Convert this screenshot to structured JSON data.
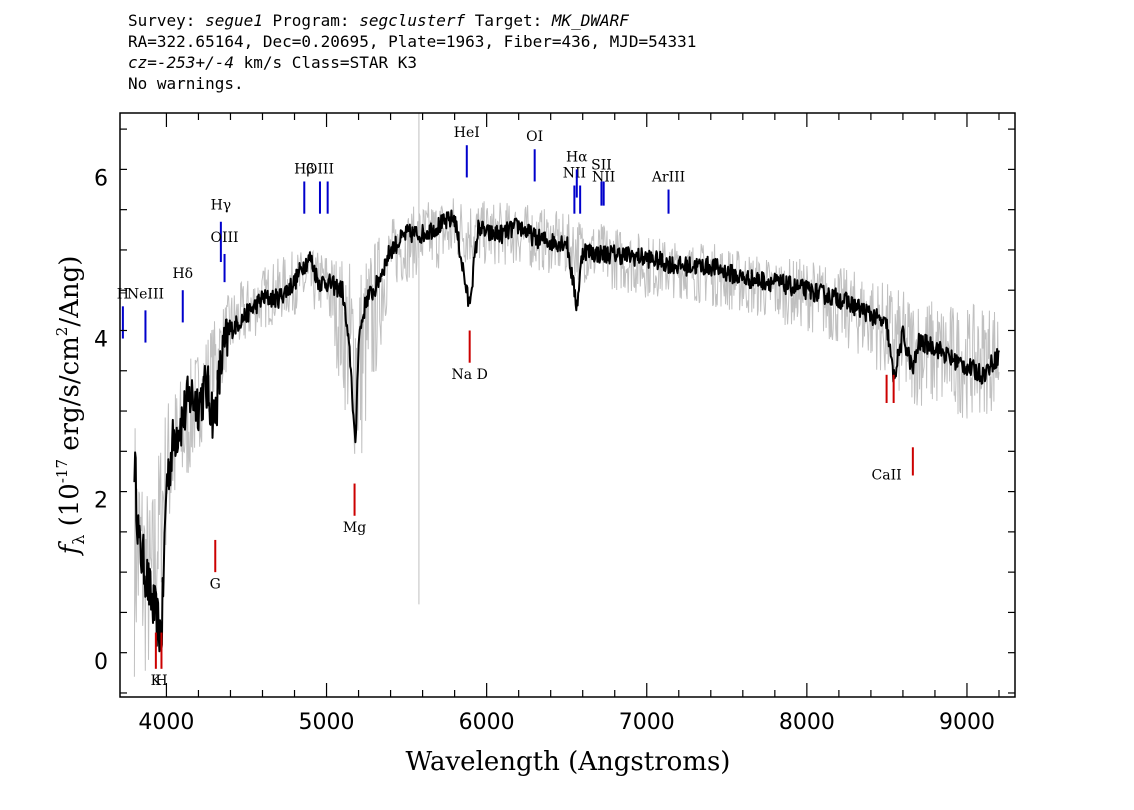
{
  "header": {
    "survey_label": "Survey: ",
    "survey": "segue1",
    "program_label": " Program: ",
    "program": "segclusterf",
    "target_label": " Target: ",
    "target": "MK_DWARF",
    "line2": "RA=322.65164, Dec=0.20695, Plate=1963, Fiber=436, MJD=54331",
    "cz_label": "cz=",
    "cz_value": "-253+/-4",
    "cz_rest": " km/s Class=STAR K3",
    "warnings": "No warnings."
  },
  "chart_data": {
    "type": "line",
    "xlabel": "Wavelength (Angstroms)",
    "ylabel": "f_λ (10^-17 erg/s/cm^2/Ang)",
    "xlim": [
      3710,
      9300
    ],
    "ylim": [
      -0.45,
      6.8
    ],
    "x_ticks": [
      4000,
      5000,
      6000,
      7000,
      8000,
      9000
    ],
    "y_ticks": [
      0,
      2,
      4,
      6
    ],
    "grid": false,
    "colors": {
      "flux": "#000000",
      "noise": "#c0c0c0",
      "emission_lines": "#0000cc",
      "absorption_lines": "#cc0000"
    },
    "series": [
      {
        "role": "smoothed flux (black)",
        "x": [
          3800,
          3830,
          3860,
          3900,
          3940,
          3970,
          4000,
          4050,
          4100,
          4150,
          4200,
          4250,
          4300,
          4350,
          4400,
          4500,
          4600,
          4700,
          4800,
          4850,
          4900,
          4950,
          5000,
          5100,
          5150,
          5180,
          5200,
          5250,
          5300,
          5400,
          5500,
          5600,
          5700,
          5800,
          5890,
          5950,
          6000,
          6100,
          6200,
          6300,
          6400,
          6500,
          6563,
          6600,
          6700,
          6800,
          7000,
          7200,
          7400,
          7600,
          7800,
          8000,
          8200,
          8400,
          8500,
          8542,
          8600,
          8662,
          8700,
          8800,
          8900,
          9000,
          9100,
          9200
        ],
        "y": [
          2.5,
          1.4,
          1.2,
          0.8,
          0.5,
          0.3,
          2.2,
          2.8,
          3.0,
          3.3,
          3.2,
          3.4,
          3.0,
          3.8,
          4.1,
          4.3,
          4.5,
          4.5,
          4.7,
          4.9,
          5.0,
          4.7,
          4.7,
          4.6,
          3.7,
          2.6,
          4.0,
          4.5,
          4.6,
          5.1,
          5.3,
          5.3,
          5.4,
          5.5,
          4.4,
          5.4,
          5.3,
          5.3,
          5.4,
          5.25,
          5.2,
          5.2,
          4.4,
          5.1,
          5.05,
          5.05,
          5.0,
          4.9,
          4.9,
          4.75,
          4.7,
          4.6,
          4.5,
          4.3,
          4.15,
          3.5,
          4.05,
          3.6,
          3.95,
          3.9,
          3.75,
          3.65,
          3.55,
          3.8
        ]
      },
      {
        "role": "noise envelope upper (gray)",
        "x": [
          3800,
          3900,
          4000,
          4200,
          4400,
          4600,
          4800,
          5000,
          5200,
          5400,
          5600,
          5800,
          6000,
          6200,
          6400,
          6600,
          6800,
          7000,
          7200,
          7400,
          7600,
          7800,
          8000,
          8200,
          8400,
          8600,
          8800,
          9000,
          9200
        ],
        "y": [
          3.2,
          2.0,
          3.3,
          3.9,
          4.6,
          4.9,
          5.1,
          5.1,
          5.0,
          5.5,
          5.7,
          5.8,
          5.7,
          5.7,
          5.6,
          5.5,
          5.4,
          5.3,
          5.2,
          5.2,
          5.1,
          5.0,
          5.0,
          4.9,
          4.8,
          4.6,
          4.5,
          4.4,
          4.5
        ]
      },
      {
        "role": "noise envelope lower (gray)",
        "x": [
          3800,
          3900,
          4000,
          4200,
          4400,
          4600,
          4800,
          5000,
          5200,
          5400,
          5600,
          5800,
          6000,
          6200,
          6400,
          6600,
          6800,
          7000,
          7200,
          7400,
          7600,
          7800,
          8000,
          8200,
          8400,
          8600,
          8800,
          9000,
          9200
        ],
        "y": [
          -0.2,
          -0.3,
          1.4,
          2.6,
          3.7,
          4.1,
          4.3,
          4.3,
          2.2,
          4.6,
          4.8,
          4.9,
          4.9,
          4.9,
          4.8,
          4.7,
          4.6,
          4.5,
          4.5,
          4.4,
          4.3,
          4.2,
          4.1,
          3.9,
          3.7,
          3.2,
          3.1,
          3.0,
          3.1
        ]
      }
    ],
    "emission_lines": [
      {
        "label": "H",
        "x": 3728,
        "y0": 4.0,
        "y1": 4.4,
        "ly": 4.5
      },
      {
        "label": "NeIII",
        "x": 3869,
        "y0": 3.95,
        "y1": 4.35,
        "ly": 4.5
      },
      {
        "label": "Hδ",
        "x": 4102,
        "y0": 4.2,
        "y1": 4.6,
        "ly": 4.75
      },
      {
        "label": "Hγ",
        "x": 4340,
        "y0": 4.95,
        "y1": 5.45,
        "ly": 5.6
      },
      {
        "label": "OIII",
        "x": 4363,
        "y0": 4.7,
        "y1": 5.05,
        "ly": 5.2
      },
      {
        "label": "Hβ",
        "x": 4861,
        "y0": 5.55,
        "y1": 5.95,
        "ly": 6.05
      },
      {
        "label": "OIII",
        "x": 4959,
        "y0": 5.55,
        "y1": 5.95,
        "ly": 6.05
      },
      {
        "label": "",
        "x": 5007,
        "y0": 5.55,
        "y1": 5.95,
        "ly": 6.05
      },
      {
        "label": "HeI",
        "x": 5876,
        "y0": 6.0,
        "y1": 6.4,
        "ly": 6.5
      },
      {
        "label": "OI",
        "x": 6300,
        "y0": 5.95,
        "y1": 6.35,
        "ly": 6.45
      },
      {
        "label": "NII",
        "x": 6548,
        "y0": 5.55,
        "y1": 5.9,
        "ly": 6.0
      },
      {
        "label": "Hα",
        "x": 6563,
        "y0": 5.75,
        "y1": 6.1,
        "ly": 6.2
      },
      {
        "label": "",
        "x": 6584,
        "y0": 5.55,
        "y1": 5.9,
        "ly": 6.0
      },
      {
        "label": "SII",
        "x": 6717,
        "y0": 5.65,
        "y1": 5.95,
        "ly": 6.1
      },
      {
        "label": "NII",
        "x": 6731,
        "y0": 5.65,
        "y1": 5.95,
        "ly": 5.95
      },
      {
        "label": "ArIII",
        "x": 7136,
        "y0": 5.55,
        "y1": 5.85,
        "ly": 5.95
      }
    ],
    "absorption_lines": [
      {
        "label": "K",
        "x": 3934,
        "y0": -0.1,
        "y1": 0.35,
        "ly": -0.3
      },
      {
        "label": "H",
        "x": 3969,
        "y0": -0.1,
        "y1": 0.35,
        "ly": -0.3
      },
      {
        "label": "G",
        "x": 4305,
        "y0": 1.1,
        "y1": 1.5,
        "ly": 0.9
      },
      {
        "label": "Mg",
        "x": 5175,
        "y0": 1.8,
        "y1": 2.2,
        "ly": 1.6
      },
      {
        "label": "Na D",
        "x": 5894,
        "y0": 3.7,
        "y1": 4.1,
        "ly": 3.5
      },
      {
        "label": "CaII",
        "x": 8498,
        "y0": 3.2,
        "y1": 3.55,
        "ly": 2.25
      },
      {
        "label": "",
        "x": 8542,
        "y0": 3.2,
        "y1": 3.55,
        "ly": 2.25
      },
      {
        "label": "",
        "x": 8662,
        "y0": 2.3,
        "y1": 2.65,
        "ly": 2.25
      }
    ],
    "spikes": [
      {
        "x": 5577,
        "y0": 0.7,
        "y1": 6.8
      }
    ]
  }
}
